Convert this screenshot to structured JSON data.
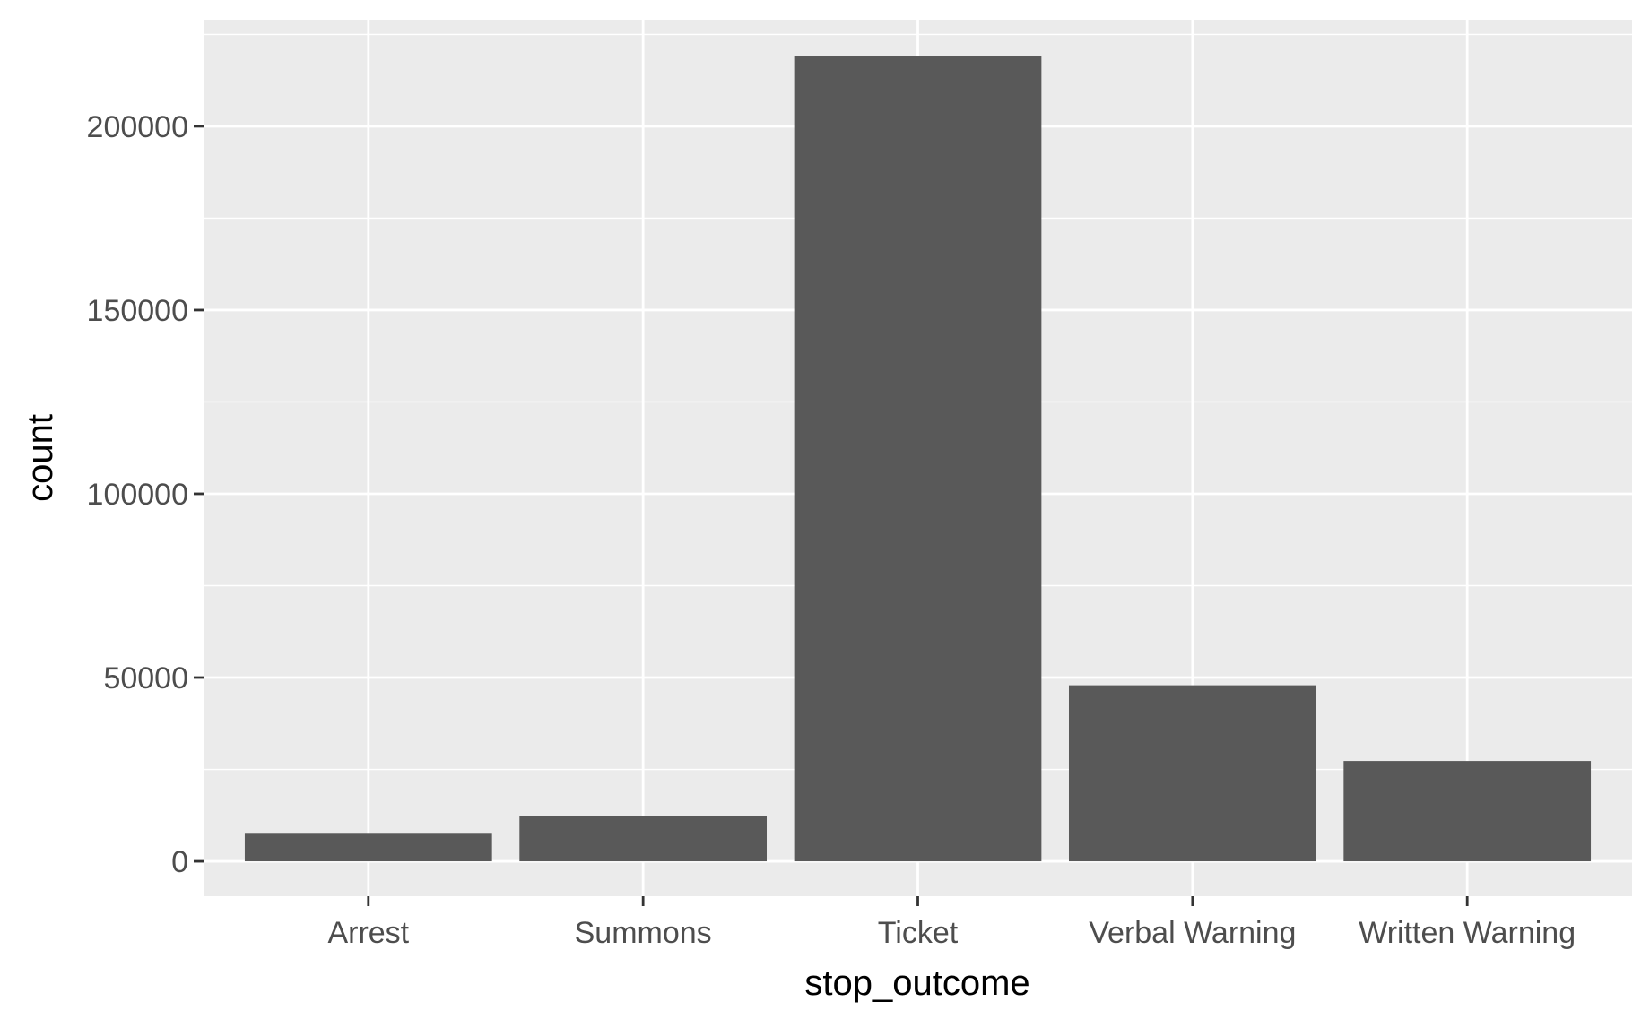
{
  "chart_data": {
    "type": "bar",
    "categories": [
      "Arrest",
      "Summons",
      "Ticket",
      "Verbal Warning",
      "Written Warning"
    ],
    "values": [
      7500,
      12300,
      219000,
      47900,
      27300
    ],
    "xlabel": "stop_outcome",
    "ylabel": "count",
    "ylim": [
      -9500,
      229000
    ],
    "yticks": [
      0,
      50000,
      100000,
      150000,
      200000
    ],
    "yticks_minor": [
      25000,
      75000,
      125000,
      175000,
      225000
    ],
    "grid": true,
    "legend": "none",
    "colors": {
      "panel_background": "#ebebeb",
      "grid_line": "#ffffff",
      "bar_fill": "#595959",
      "tick_label": "#4d4d4d",
      "tick_mark": "#333333",
      "axis_title": "#000000"
    }
  }
}
